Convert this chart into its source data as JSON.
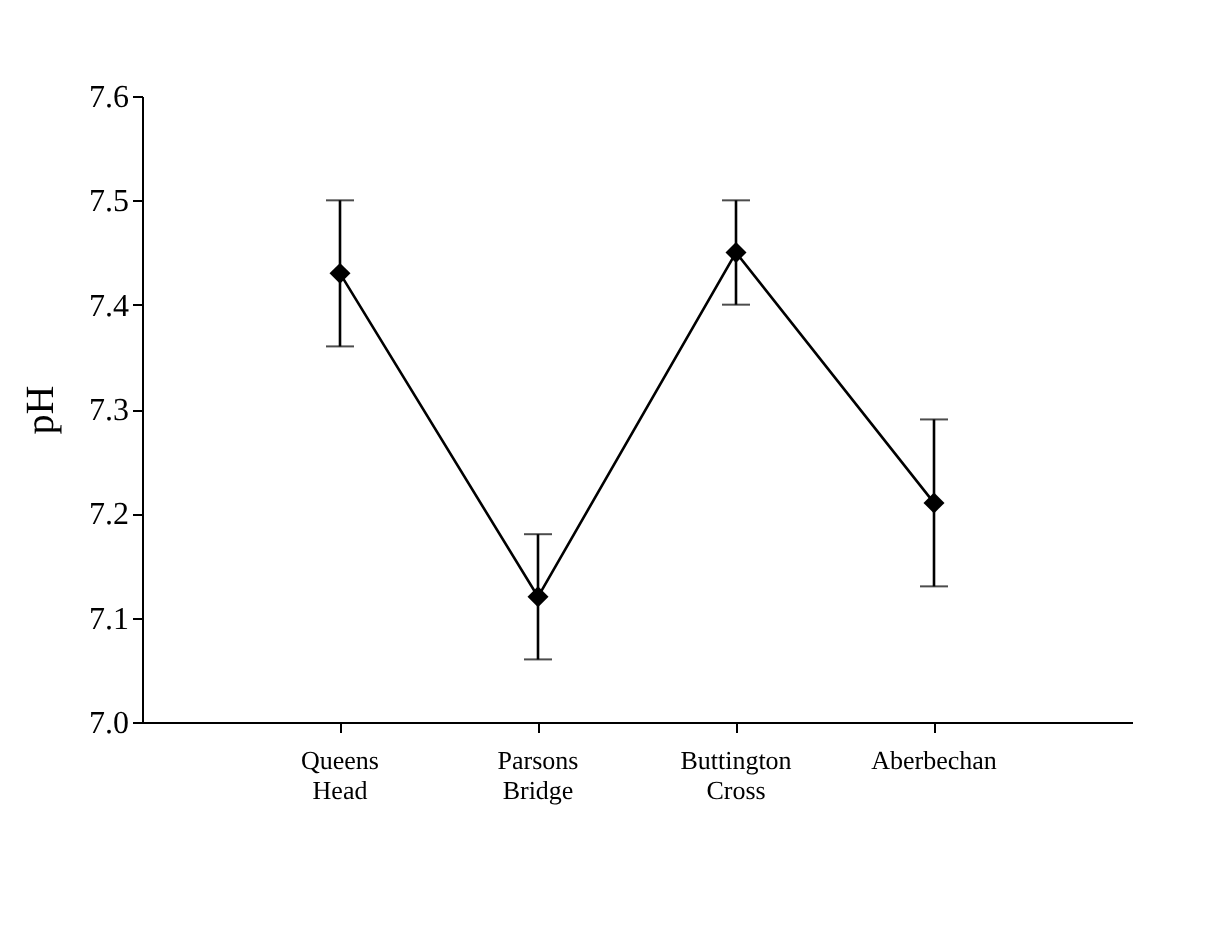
{
  "chart_data": {
    "type": "line",
    "ylabel": "pH",
    "categories": [
      "Queens Head",
      "Parsons Bridge",
      "Buttington Cross",
      "Aberbechan"
    ],
    "values": [
      7.43,
      7.12,
      7.45,
      7.21
    ],
    "errors": [
      [
        7.36,
        7.5
      ],
      [
        7.06,
        7.18
      ],
      [
        7.4,
        7.5
      ],
      [
        7.13,
        7.29
      ]
    ],
    "color": "#000000",
    "marker": "diamond",
    "line_style": "solid",
    "ylim": [
      7.0,
      7.6
    ],
    "yticks": [
      {
        "value": 7.0,
        "label": "7.0"
      },
      7.1,
      7.2,
      7.3,
      7.4,
      7.5,
      7.6
    ]
  }
}
